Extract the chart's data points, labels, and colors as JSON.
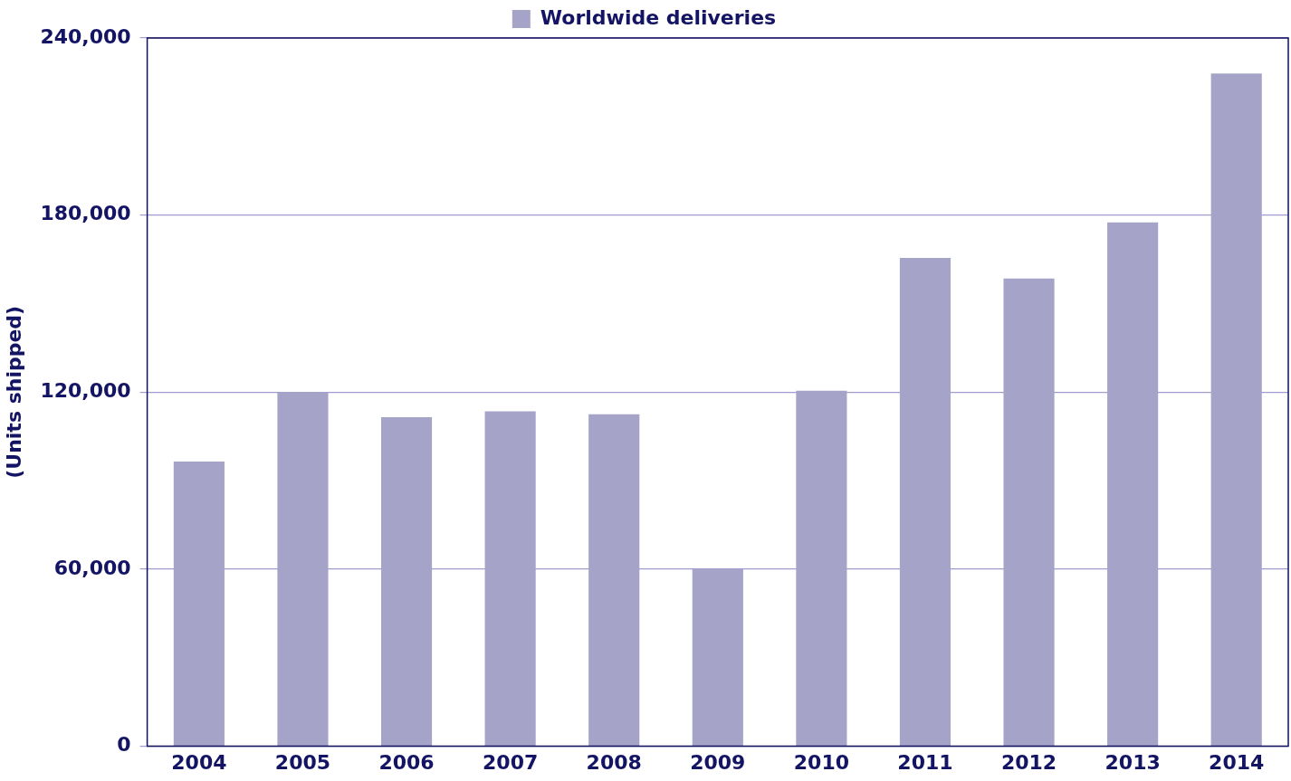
{
  "chart_data": {
    "type": "bar",
    "categories": [
      "2004",
      "2005",
      "2006",
      "2007",
      "2008",
      "2009",
      "2010",
      "2011",
      "2012",
      "2013",
      "2014"
    ],
    "series": [
      {
        "name": "Worldwide deliveries",
        "color": "#a5a3c8",
        "values": [
          96500,
          120000,
          111500,
          113500,
          112500,
          60000,
          120500,
          165500,
          158500,
          177500,
          228000
        ]
      }
    ],
    "ylabel": "(Units shipped)",
    "ylim": [
      0,
      240000
    ],
    "yticks": [
      {
        "value": 0,
        "label": "0"
      },
      {
        "value": 60000,
        "label": "60,000"
      },
      {
        "value": 120000,
        "label": "120,000"
      },
      {
        "value": 180000,
        "label": "180,000"
      },
      {
        "value": 240000,
        "label": "240,000"
      }
    ],
    "grid": "y",
    "legend": "top"
  }
}
